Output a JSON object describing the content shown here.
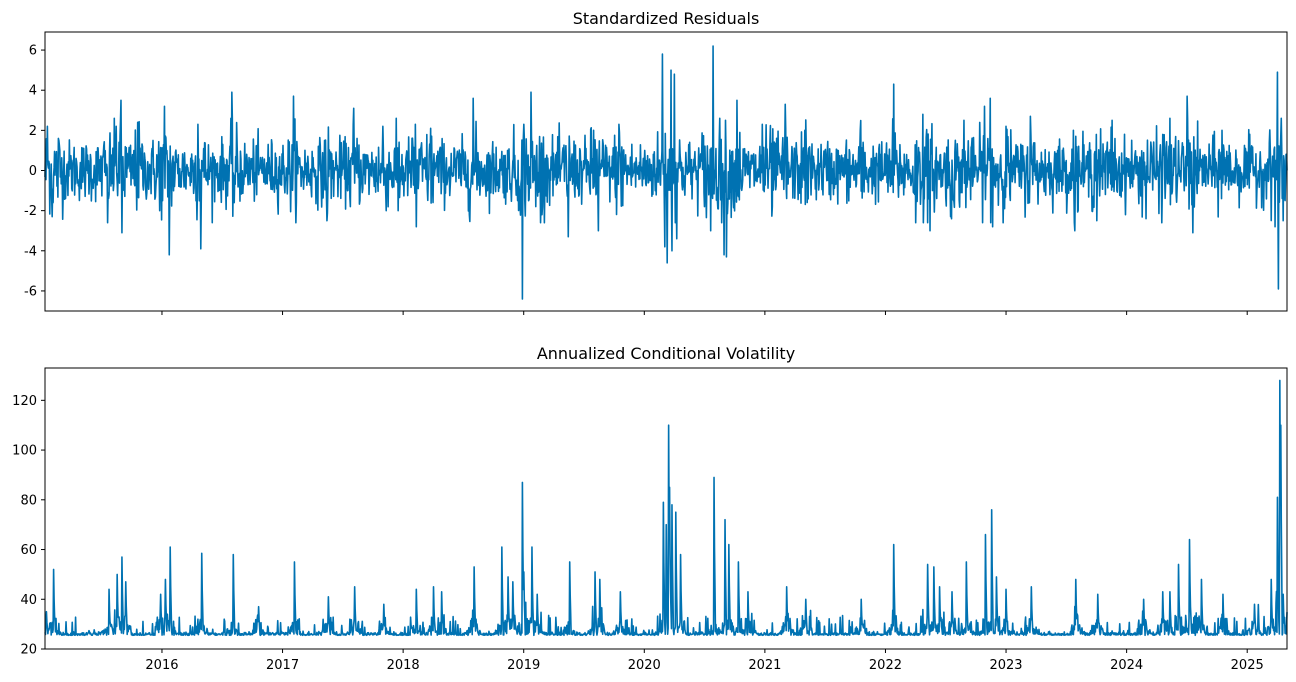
{
  "colors": {
    "series": "#0072b2",
    "axis": "#000000",
    "background": "#ffffff"
  },
  "chart_data": [
    {
      "type": "line",
      "title": "Standardized Residuals",
      "xlabel": "",
      "ylabel": "",
      "xlim": [
        2015.03,
        2025.33
      ],
      "ylim": [
        -7.0,
        6.9
      ],
      "yticks": [
        -6,
        -4,
        -2,
        0,
        2,
        4,
        6
      ],
      "xticks": [
        2016,
        2017,
        2018,
        2019,
        2020,
        2021,
        2022,
        2023,
        2024,
        2025
      ],
      "show_x_tick_labels": false,
      "series": [
        {
          "name": "Standardized Residuals",
          "kind": "residual",
          "spikes": [
            [
              2015.05,
              2.2
            ],
            [
              2015.09,
              -2.3
            ],
            [
              2015.14,
              1.6
            ],
            [
              2015.55,
              -2.6
            ],
            [
              2015.62,
              2.2
            ],
            [
              2015.66,
              3.5
            ],
            [
              2015.67,
              -3.1
            ],
            [
              2015.8,
              2.4
            ],
            [
              2015.98,
              -2.0
            ],
            [
              2016.02,
              3.2
            ],
            [
              2016.06,
              -4.2
            ],
            [
              2016.3,
              2.3
            ],
            [
              2016.32,
              -3.9
            ],
            [
              2016.58,
              3.9
            ],
            [
              2016.6,
              -1.6
            ],
            [
              2017.09,
              3.7
            ],
            [
              2017.37,
              -2.5
            ],
            [
              2017.59,
              3.1
            ],
            [
              2017.83,
              2.2
            ],
            [
              2017.96,
              -2.0
            ],
            [
              2018.1,
              2.3
            ],
            [
              2018.11,
              -2.8
            ],
            [
              2018.23,
              2.1
            ],
            [
              2018.58,
              3.6
            ],
            [
              2018.95,
              -1.5
            ],
            [
              2018.99,
              -6.4
            ],
            [
              2019.0,
              2.3
            ],
            [
              2019.06,
              3.9
            ],
            [
              2019.1,
              -1.8
            ],
            [
              2019.15,
              -2.2
            ],
            [
              2019.37,
              -3.3
            ],
            [
              2019.58,
              2.0
            ],
            [
              2019.62,
              -3.0
            ],
            [
              2019.79,
              2.3
            ],
            [
              2020.15,
              5.8
            ],
            [
              2020.17,
              -3.8
            ],
            [
              2020.19,
              -4.6
            ],
            [
              2020.22,
              5.0
            ],
            [
              2020.23,
              -4.0
            ],
            [
              2020.25,
              4.8
            ],
            [
              2020.27,
              -3.4
            ],
            [
              2020.5,
              -1.8
            ],
            [
              2020.55,
              -3.0
            ],
            [
              2020.57,
              6.2
            ],
            [
              2020.62,
              1.6
            ],
            [
              2020.66,
              -4.2
            ],
            [
              2020.68,
              -4.3
            ],
            [
              2020.77,
              3.5
            ],
            [
              2020.98,
              2.3
            ],
            [
              2021.06,
              -1.8
            ],
            [
              2021.17,
              3.3
            ],
            [
              2021.33,
              2.0
            ],
            [
              2021.79,
              2.0
            ],
            [
              2022.07,
              4.3
            ],
            [
              2022.25,
              -2.6
            ],
            [
              2022.31,
              2.8
            ],
            [
              2022.37,
              -3.0
            ],
            [
              2022.54,
              -2.3
            ],
            [
              2022.65,
              2.5
            ],
            [
              2022.82,
              3.2
            ],
            [
              2022.87,
              3.6
            ],
            [
              2022.89,
              -2.8
            ],
            [
              2023.0,
              2.2
            ],
            [
              2023.2,
              2.7
            ],
            [
              2023.57,
              -3.0
            ],
            [
              2023.75,
              1.8
            ],
            [
              2023.88,
              2.5
            ],
            [
              2024.16,
              -2.4
            ],
            [
              2024.3,
              1.8
            ],
            [
              2024.36,
              2.6
            ],
            [
              2024.5,
              3.7
            ],
            [
              2024.55,
              -3.1
            ],
            [
              2024.79,
              2.0
            ],
            [
              2025.25,
              4.9
            ],
            [
              2025.23,
              -2.8
            ],
            [
              2025.26,
              -5.9
            ],
            [
              2025.28,
              1.7
            ],
            [
              2025.3,
              -2.5
            ]
          ]
        }
      ]
    },
    {
      "type": "line",
      "title": "Annualized Conditional Volatility",
      "xlabel": "",
      "ylabel": "",
      "xlim": [
        2015.03,
        2025.33
      ],
      "ylim": [
        20,
        133
      ],
      "yticks": [
        20,
        40,
        60,
        80,
        100,
        120
      ],
      "xticks": [
        2016,
        2017,
        2018,
        2019,
        2020,
        2021,
        2022,
        2023,
        2024,
        2025
      ],
      "xtick_labels": [
        "2016",
        "2017",
        "2018",
        "2019",
        "2020",
        "2021",
        "2022",
        "2023",
        "2024",
        "2025"
      ],
      "show_x_tick_labels": true,
      "series": [
        {
          "name": "Annualized Conditional Volatility",
          "kind": "volatility",
          "baseline": 25.5,
          "spikes": [
            [
              2015.04,
              35
            ],
            [
              2015.1,
              52
            ],
            [
              2015.56,
              44
            ],
            [
              2015.63,
              50
            ],
            [
              2015.67,
              57
            ],
            [
              2015.7,
              47
            ],
            [
              2015.99,
              42
            ],
            [
              2016.03,
              48
            ],
            [
              2016.07,
              61
            ],
            [
              2016.33,
              58.5
            ],
            [
              2016.59,
              58
            ],
            [
              2016.8,
              37
            ],
            [
              2017.1,
              55
            ],
            [
              2017.38,
              41
            ],
            [
              2017.6,
              45
            ],
            [
              2017.84,
              38
            ],
            [
              2018.11,
              44
            ],
            [
              2018.25,
              45
            ],
            [
              2018.32,
              43
            ],
            [
              2018.59,
              53
            ],
            [
              2018.82,
              61
            ],
            [
              2018.87,
              49
            ],
            [
              2018.91,
              47
            ],
            [
              2018.99,
              87
            ],
            [
              2019.0,
              51
            ],
            [
              2019.07,
              61
            ],
            [
              2019.11,
              42
            ],
            [
              2019.38,
              55
            ],
            [
              2019.59,
              51
            ],
            [
              2019.63,
              48
            ],
            [
              2019.8,
              43
            ],
            [
              2020.16,
              79
            ],
            [
              2020.18,
              70
            ],
            [
              2020.2,
              110
            ],
            [
              2020.21,
              85
            ],
            [
              2020.23,
              78
            ],
            [
              2020.26,
              75
            ],
            [
              2020.3,
              58
            ],
            [
              2020.58,
              89
            ],
            [
              2020.67,
              72
            ],
            [
              2020.7,
              62
            ],
            [
              2020.78,
              55
            ],
            [
              2020.86,
              43
            ],
            [
              2021.18,
              45
            ],
            [
              2021.34,
              40
            ],
            [
              2021.8,
              40
            ],
            [
              2022.07,
              62
            ],
            [
              2022.35,
              54
            ],
            [
              2022.4,
              53
            ],
            [
              2022.45,
              45
            ],
            [
              2022.55,
              43
            ],
            [
              2022.67,
              55
            ],
            [
              2022.83,
              66
            ],
            [
              2022.88,
              76
            ],
            [
              2022.92,
              49
            ],
            [
              2023.0,
              44
            ],
            [
              2023.21,
              45
            ],
            [
              2023.58,
              48
            ],
            [
              2023.76,
              42
            ],
            [
              2024.14,
              40
            ],
            [
              2024.3,
              43
            ],
            [
              2024.36,
              43
            ],
            [
              2024.43,
              54
            ],
            [
              2024.52,
              64
            ],
            [
              2024.62,
              48
            ],
            [
              2024.8,
              42
            ],
            [
              2025.06,
              38
            ],
            [
              2025.2,
              48
            ],
            [
              2025.25,
              81
            ],
            [
              2025.27,
              128
            ],
            [
              2025.28,
              110
            ],
            [
              2025.3,
              42
            ]
          ]
        }
      ]
    }
  ]
}
